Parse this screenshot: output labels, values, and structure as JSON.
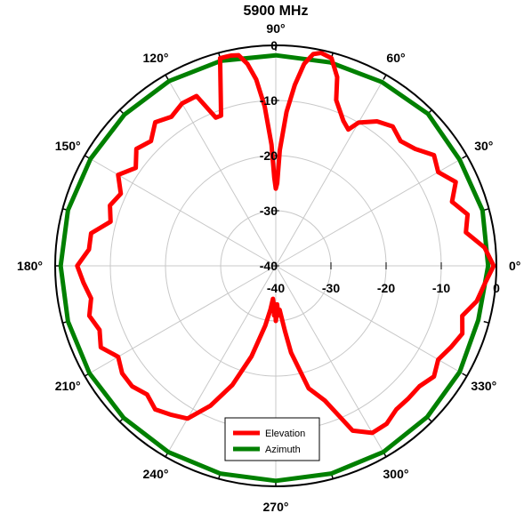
{
  "chart_data": {
    "type": "polar",
    "title": "5900 MHz",
    "angle_unit": "deg",
    "radial_range": [
      -40,
      0
    ],
    "radial_ticks": [
      -40,
      -30,
      -20,
      -10,
      0
    ],
    "radial_tick_labels": [
      "-40",
      "-30",
      "-20",
      "-10",
      "0"
    ],
    "angle_ticks": [
      0,
      30,
      60,
      90,
      120,
      150,
      180,
      210,
      240,
      270,
      300,
      330
    ],
    "angle_tick_labels": [
      "0°",
      "30°",
      "60°",
      "90°",
      "120°",
      "150°",
      "180°",
      "210°",
      "240°",
      "270°",
      "300°",
      "330°"
    ],
    "grid": true,
    "legend_position": "bottom-center",
    "series": [
      {
        "name": "Elevation",
        "color": "#ff0000",
        "angles": [
          0,
          5,
          10,
          15,
          20,
          25,
          30,
          35,
          40,
          45,
          50,
          55,
          60,
          62,
          65,
          70,
          72,
          75,
          78,
          80,
          82,
          84,
          86,
          88,
          89,
          90,
          91,
          92,
          94,
          96,
          98,
          100,
          102,
          105,
          110,
          112,
          115,
          120,
          125,
          130,
          135,
          140,
          145,
          150,
          155,
          160,
          165,
          170,
          175,
          180,
          185,
          190,
          195,
          200,
          205,
          210,
          215,
          220,
          225,
          230,
          235,
          240,
          245,
          250,
          255,
          260,
          263,
          265,
          267,
          268,
          269,
          270,
          271,
          272,
          273,
          275,
          278,
          280,
          285,
          290,
          295,
          300,
          305,
          310,
          315,
          320,
          325,
          330,
          335,
          340,
          345,
          350,
          355,
          360
        ],
        "values": [
          -0.5,
          -2,
          -5,
          -4,
          -6,
          -4,
          -6,
          -5,
          -7,
          -8,
          -7,
          -8,
          -10,
          -12,
          -11,
          -8,
          -4,
          -1,
          -0.5,
          -1,
          -3,
          -7,
          -12,
          -19,
          -25,
          -26,
          -24,
          -18,
          -11,
          -6,
          -3,
          -1.2,
          -1,
          -1,
          -11,
          -11,
          -6,
          -6,
          -7,
          -6,
          -8,
          -7,
          -9,
          -7,
          -9,
          -8,
          -9,
          -6,
          -6,
          -4,
          -5,
          -6,
          -5,
          -6,
          -5,
          -7,
          -6,
          -6,
          -7,
          -6,
          -7,
          -8,
          -12,
          -17,
          -23,
          -29,
          -32,
          -34,
          -33,
          -31,
          -33,
          -30,
          -31,
          -33,
          -31,
          -32,
          -28,
          -24,
          -17,
          -14,
          -7,
          -5,
          -5,
          -6,
          -6,
          -6,
          -5,
          -6,
          -5,
          -4,
          -5,
          -3,
          -2,
          -0.5
        ]
      },
      {
        "name": "Azimuth",
        "color": "#008000",
        "angles": [
          0,
          15,
          30,
          45,
          60,
          75,
          90,
          105,
          120,
          135,
          150,
          165,
          180,
          195,
          210,
          225,
          240,
          255,
          270,
          285,
          300,
          315,
          330,
          345,
          360
        ],
        "values": [
          -1.5,
          -1.2,
          -1.5,
          -1,
          -1.5,
          -1.8,
          -1.8,
          -1.5,
          -1.3,
          -1.2,
          -1.2,
          -1,
          -1,
          -1,
          -1,
          -1,
          -1,
          -1,
          -1,
          -1,
          -1,
          -1.2,
          -1.5,
          -2,
          -1.5
        ]
      }
    ]
  }
}
